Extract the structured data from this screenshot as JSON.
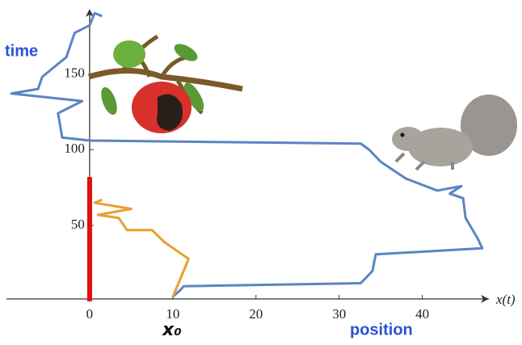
{
  "chart_data": {
    "type": "line",
    "y_label": "time",
    "x_label": "position",
    "x_axis_label": "x(t)",
    "annotation": "x₀",
    "xlim": [
      -10,
      48
    ],
    "ylim": [
      0,
      196
    ],
    "xticks": [
      0,
      10,
      20,
      30,
      40
    ],
    "yticks": [
      50,
      100,
      150
    ],
    "series": [
      {
        "color": "#5b84c4",
        "x": [
          10,
          11,
          11.3,
          32.6,
          34,
          34.4,
          47.2,
          46.7,
          45.2,
          44.9,
          43.3,
          44.7,
          41.8,
          38,
          35,
          33.6,
          32.6,
          0.1,
          -3.3,
          -3.8,
          -0.9,
          -9.4,
          -6.2,
          -5.7,
          -2.8,
          -1.8,
          0,
          0.6,
          1.5
        ],
        "values": [
          3,
          8,
          10,
          12,
          20,
          31,
          35,
          41,
          55,
          68,
          71,
          76,
          73,
          81,
          92,
          100,
          104,
          106,
          108,
          124,
          132,
          137,
          140,
          148,
          161,
          177,
          182,
          190,
          188
        ]
      },
      {
        "color": "#e8a030",
        "x": [
          10,
          11.9,
          9,
          7.5,
          4.5,
          3.5,
          1,
          5,
          0.6,
          1.5
        ],
        "values": [
          3,
          28,
          39,
          47,
          47,
          55,
          57,
          61,
          65,
          67
        ]
      }
    ],
    "red_bar": {
      "x": 0,
      "top": 82,
      "color": "#e01010"
    }
  }
}
